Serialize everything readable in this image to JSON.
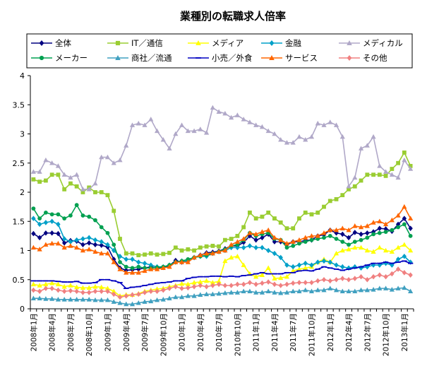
{
  "chart_data": {
    "type": "line",
    "title": "業種別の転職求人倍率",
    "xlabel": "",
    "ylabel": "",
    "ylim": [
      0,
      4
    ],
    "yticks": [
      "0",
      "0.5",
      "1",
      "1.5",
      "2",
      "2.5",
      "3",
      "3.5",
      "4"
    ],
    "ytick_values": [
      0,
      0.5,
      1,
      1.5,
      2,
      2.5,
      3,
      3.5,
      4
    ],
    "grid": false,
    "legend_position": "top",
    "x_tick_labels": [
      "2008年1月",
      "2008年4月",
      "2008年7月",
      "2008年10月",
      "2009年1月",
      "2009年4月",
      "2009年7月",
      "2009年10月",
      "2010年1月",
      "2010年4月",
      "2010年7月",
      "2010年10月",
      "2011年1月",
      "2011年4月",
      "2011年7月",
      "2011年10月",
      "2012年1月",
      "2012年4月",
      "2012年7月",
      "2012年10月",
      "2013年1月"
    ],
    "series": [
      {
        "name": "全体",
        "color": "#000080",
        "marker": "diamond",
        "values": [
          1.29,
          1.22,
          1.3,
          1.3,
          1.29,
          1.13,
          1.17,
          1.16,
          1.1,
          1.13,
          1.1,
          1.09,
          1.06,
          0.85,
          0.7,
          0.66,
          0.67,
          0.68,
          0.7,
          0.72,
          0.7,
          0.71,
          0.74,
          0.83,
          0.8,
          0.82,
          0.88,
          0.92,
          0.96,
          0.97,
          0.99,
          1.03,
          1.08,
          1.08,
          1.14,
          1.25,
          1.18,
          1.22,
          1.28,
          1.15,
          1.15,
          1.1,
          1.15,
          1.15,
          1.17,
          1.18,
          1.25,
          1.27,
          1.35,
          1.3,
          1.28,
          1.22,
          1.31,
          1.28,
          1.3,
          1.32,
          1.38,
          1.37,
          1.33,
          1.45,
          1.55,
          1.38
        ]
      },
      {
        "name": "IT／通信",
        "color": "#9ACD32",
        "marker": "square",
        "values": [
          2.22,
          2.18,
          2.2,
          2.3,
          2.3,
          2.05,
          2.15,
          2.1,
          2.0,
          2.08,
          2.0,
          2.0,
          1.95,
          1.68,
          1.2,
          0.95,
          0.95,
          0.92,
          0.93,
          0.95,
          0.93,
          0.94,
          0.96,
          1.05,
          1.0,
          1.02,
          1.0,
          1.05,
          1.07,
          1.08,
          1.07,
          1.18,
          1.2,
          1.25,
          1.4,
          1.65,
          1.55,
          1.58,
          1.65,
          1.55,
          1.48,
          1.38,
          1.38,
          1.55,
          1.65,
          1.62,
          1.65,
          1.75,
          1.85,
          1.88,
          1.95,
          2.05,
          2.1,
          2.2,
          2.3,
          2.3,
          2.3,
          2.28,
          2.4,
          2.5,
          2.68,
          2.45
        ]
      },
      {
        "name": "メディア",
        "color": "#FFFF00",
        "marker": "triangle",
        "values": [
          0.42,
          0.4,
          0.42,
          0.44,
          0.42,
          0.38,
          0.4,
          0.37,
          0.36,
          0.36,
          0.38,
          0.37,
          0.35,
          0.3,
          0.22,
          0.24,
          0.24,
          0.26,
          0.3,
          0.32,
          0.34,
          0.35,
          0.38,
          0.4,
          0.43,
          0.42,
          0.45,
          0.46,
          0.48,
          0.45,
          0.47,
          0.82,
          0.88,
          0.9,
          0.75,
          0.6,
          0.55,
          0.58,
          0.7,
          0.52,
          0.53,
          0.55,
          0.65,
          0.68,
          0.7,
          0.72,
          0.8,
          0.85,
          0.8,
          0.95,
          1.0,
          1.02,
          1.05,
          1.05,
          1.0,
          0.98,
          1.05,
          1.0,
          0.98,
          1.05,
          1.1,
          1.0
        ]
      },
      {
        "name": "金融",
        "color": "#00A0C8",
        "marker": "diamond",
        "values": [
          1.55,
          1.45,
          1.48,
          1.5,
          1.45,
          1.2,
          1.15,
          1.18,
          1.2,
          1.22,
          1.18,
          1.15,
          1.1,
          1.0,
          0.9,
          0.85,
          0.85,
          0.8,
          0.78,
          0.75,
          0.72,
          0.72,
          0.75,
          0.8,
          0.82,
          0.82,
          0.88,
          0.9,
          0.9,
          0.95,
          0.98,
          1.0,
          1.05,
          1.05,
          1.05,
          1.08,
          1.05,
          1.05,
          1.0,
          0.95,
          0.88,
          0.75,
          0.72,
          0.75,
          0.78,
          0.75,
          0.8,
          0.82,
          0.8,
          0.75,
          0.72,
          0.7,
          0.72,
          0.7,
          0.72,
          0.75,
          0.75,
          0.78,
          0.75,
          0.85,
          0.9,
          0.8
        ]
      },
      {
        "name": "メディカル",
        "color": "#B0A8C8",
        "marker": "triangle",
        "values": [
          2.35,
          2.35,
          2.55,
          2.5,
          2.45,
          2.3,
          2.25,
          2.3,
          2.05,
          2.05,
          2.15,
          2.6,
          2.6,
          2.5,
          2.55,
          2.8,
          3.15,
          3.18,
          3.15,
          3.25,
          3.05,
          2.9,
          2.75,
          3.0,
          3.15,
          3.05,
          3.05,
          3.08,
          3.02,
          3.45,
          3.38,
          3.35,
          3.28,
          3.32,
          3.25,
          3.2,
          3.15,
          3.12,
          3.05,
          3.0,
          2.9,
          2.85,
          2.85,
          2.95,
          2.9,
          2.95,
          3.18,
          3.15,
          3.2,
          3.15,
          2.95,
          2.1,
          2.25,
          2.75,
          2.8,
          2.95,
          2.45,
          2.35,
          2.3,
          2.25,
          2.55,
          2.4
        ]
      },
      {
        "name": "メーカー",
        "color": "#00A050",
        "marker": "circle",
        "values": [
          1.72,
          1.55,
          1.65,
          1.62,
          1.62,
          1.55,
          1.6,
          1.78,
          1.6,
          1.58,
          1.52,
          1.4,
          1.3,
          1.1,
          0.8,
          0.72,
          0.7,
          0.72,
          0.7,
          0.7,
          0.71,
          0.72,
          0.75,
          0.8,
          0.82,
          0.85,
          0.88,
          0.9,
          0.92,
          0.95,
          0.98,
          1.02,
          1.08,
          1.1,
          1.18,
          1.3,
          1.25,
          1.28,
          1.3,
          1.2,
          1.18,
          1.05,
          1.08,
          1.12,
          1.15,
          1.18,
          1.2,
          1.22,
          1.25,
          1.2,
          1.15,
          1.1,
          1.15,
          1.18,
          1.22,
          1.28,
          1.3,
          1.32,
          1.35,
          1.4,
          1.45,
          1.25
        ]
      },
      {
        "name": "商社／流通",
        "color": "#40A0C0",
        "marker": "triangle",
        "values": [
          0.18,
          0.18,
          0.17,
          0.17,
          0.16,
          0.16,
          0.16,
          0.16,
          0.16,
          0.16,
          0.15,
          0.15,
          0.15,
          0.12,
          0.1,
          0.08,
          0.08,
          0.1,
          0.12,
          0.13,
          0.15,
          0.16,
          0.18,
          0.2,
          0.2,
          0.22,
          0.22,
          0.24,
          0.25,
          0.25,
          0.26,
          0.27,
          0.28,
          0.28,
          0.3,
          0.3,
          0.28,
          0.28,
          0.3,
          0.28,
          0.27,
          0.28,
          0.3,
          0.3,
          0.32,
          0.3,
          0.32,
          0.32,
          0.35,
          0.32,
          0.3,
          0.3,
          0.3,
          0.32,
          0.32,
          0.33,
          0.35,
          0.35,
          0.33,
          0.35,
          0.36,
          0.3
        ]
      },
      {
        "name": "小売／外食",
        "color": "#0000C0",
        "marker": "dash",
        "values": [
          0.48,
          0.48,
          0.48,
          0.48,
          0.47,
          0.46,
          0.46,
          0.47,
          0.44,
          0.44,
          0.45,
          0.5,
          0.5,
          0.48,
          0.45,
          0.35,
          0.37,
          0.38,
          0.4,
          0.42,
          0.44,
          0.45,
          0.46,
          0.48,
          0.48,
          0.52,
          0.54,
          0.55,
          0.55,
          0.56,
          0.56,
          0.55,
          0.56,
          0.55,
          0.57,
          0.58,
          0.6,
          0.62,
          0.6,
          0.6,
          0.6,
          0.62,
          0.62,
          0.65,
          0.66,
          0.65,
          0.68,
          0.72,
          0.7,
          0.68,
          0.66,
          0.68,
          0.7,
          0.72,
          0.75,
          0.78,
          0.78,
          0.8,
          0.78,
          0.8,
          0.82,
          0.78
        ]
      },
      {
        "name": "サービス",
        "color": "#FF6600",
        "marker": "triangle",
        "values": [
          1.05,
          1.02,
          1.1,
          1.12,
          1.12,
          1.05,
          1.08,
          1.05,
          1.0,
          1.02,
          0.98,
          0.95,
          0.95,
          0.8,
          0.68,
          0.62,
          0.62,
          0.62,
          0.65,
          0.68,
          0.68,
          0.7,
          0.72,
          0.8,
          0.8,
          0.8,
          0.88,
          0.92,
          0.95,
          0.95,
          0.98,
          1.0,
          1.1,
          1.15,
          1.2,
          1.3,
          1.28,
          1.32,
          1.35,
          1.22,
          1.18,
          1.12,
          1.15,
          1.18,
          1.22,
          1.25,
          1.25,
          1.3,
          1.35,
          1.35,
          1.38,
          1.35,
          1.42,
          1.4,
          1.42,
          1.48,
          1.5,
          1.45,
          1.52,
          1.6,
          1.75,
          1.55
        ]
      },
      {
        "name": "その他",
        "color": "#F08080",
        "marker": "diamond",
        "values": [
          0.32,
          0.3,
          0.35,
          0.35,
          0.32,
          0.3,
          0.31,
          0.3,
          0.28,
          0.28,
          0.3,
          0.3,
          0.3,
          0.25,
          0.2,
          0.22,
          0.24,
          0.25,
          0.28,
          0.3,
          0.3,
          0.32,
          0.35,
          0.38,
          0.35,
          0.36,
          0.38,
          0.4,
          0.38,
          0.4,
          0.42,
          0.4,
          0.4,
          0.42,
          0.42,
          0.45,
          0.42,
          0.44,
          0.46,
          0.42,
          0.4,
          0.42,
          0.44,
          0.45,
          0.45,
          0.45,
          0.48,
          0.5,
          0.48,
          0.5,
          0.52,
          0.5,
          0.52,
          0.55,
          0.5,
          0.55,
          0.58,
          0.55,
          0.6,
          0.68,
          0.62,
          0.58
        ]
      }
    ]
  }
}
